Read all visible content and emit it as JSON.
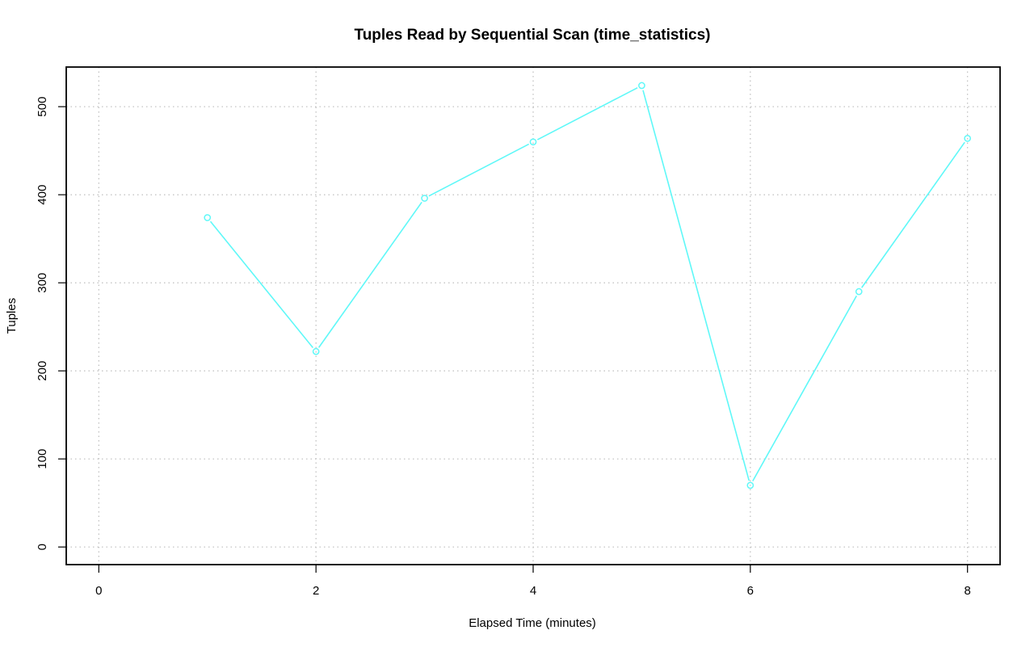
{
  "chart_data": {
    "type": "line",
    "title": "Tuples Read by Sequential Scan (time_statistics)",
    "xlabel": "Elapsed Time (minutes)",
    "ylabel": "Tuples",
    "xlim": [
      -0.3,
      8.3
    ],
    "ylim": [
      -20,
      545
    ],
    "xticks": [
      0,
      2,
      4,
      6,
      8
    ],
    "yticks": [
      0,
      100,
      200,
      300,
      400,
      500
    ],
    "grid": true,
    "legend": "none",
    "series": [
      {
        "color": "#5ff8f8",
        "x": [
          1,
          2,
          3,
          4,
          5,
          6,
          7,
          8
        ],
        "y": [
          374,
          222,
          396,
          460,
          524,
          70,
          290,
          464
        ]
      }
    ]
  }
}
